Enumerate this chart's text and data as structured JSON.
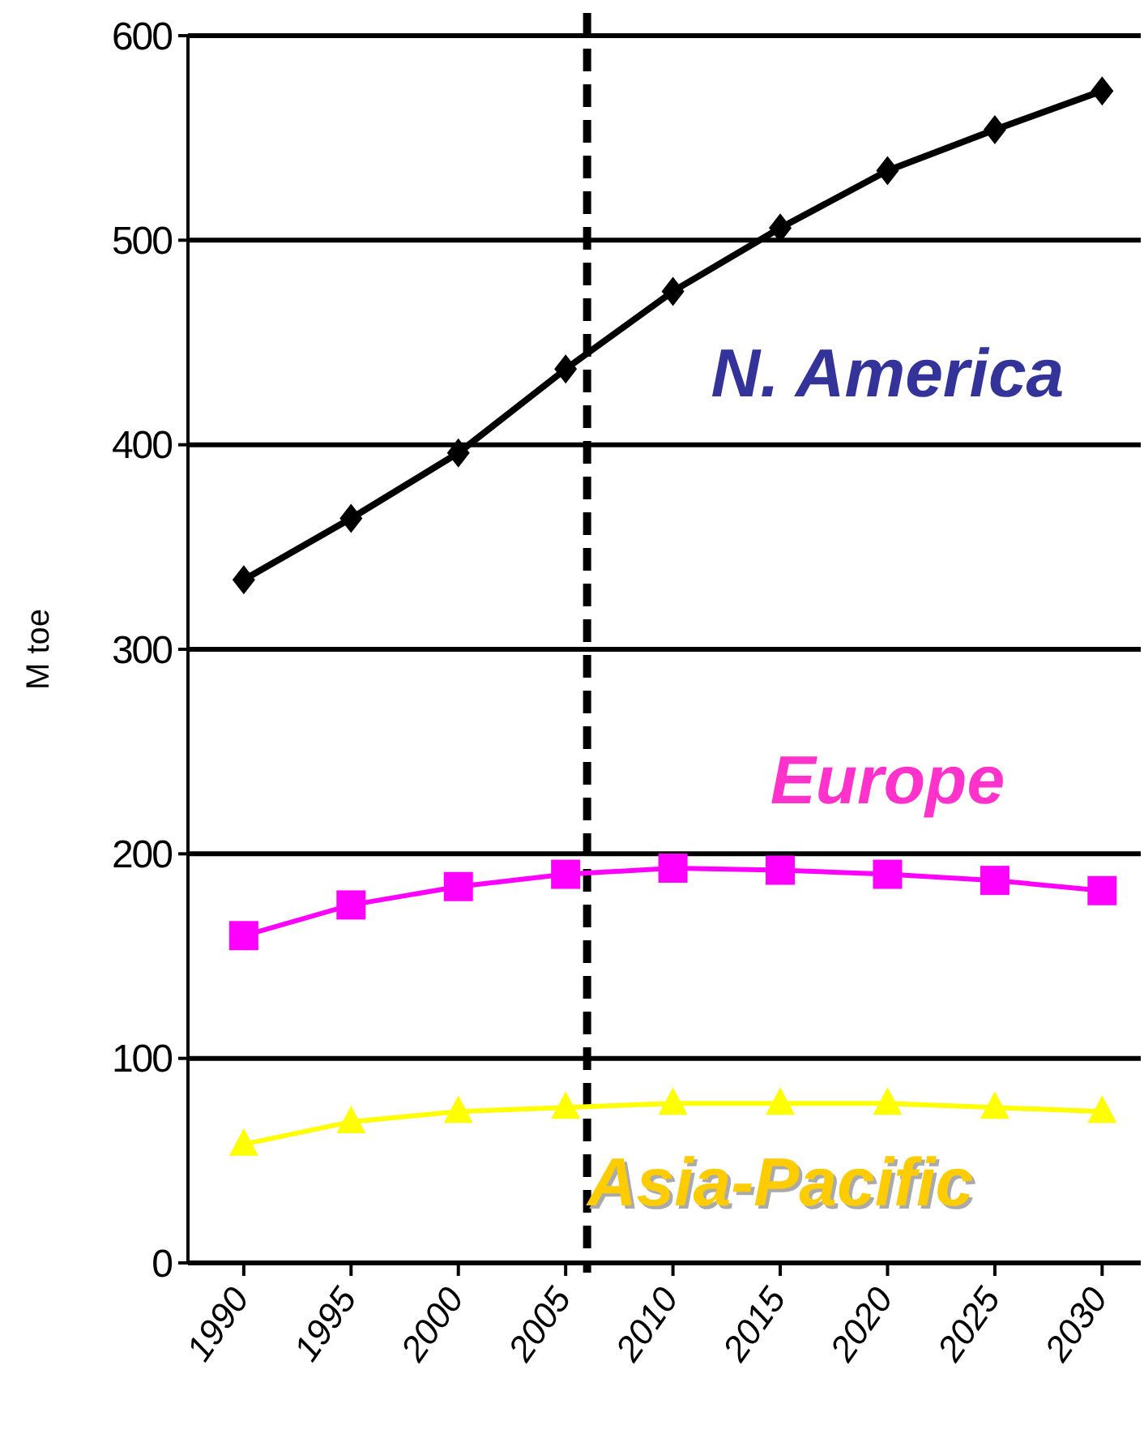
{
  "chart_data": {
    "type": "line",
    "ylabel": "M toe",
    "x": [
      1990,
      1995,
      2000,
      2005,
      2010,
      2015,
      2020,
      2025,
      2030
    ],
    "xlim": [
      1987.4,
      2031.8
    ],
    "xticks": [
      1990,
      1995,
      2000,
      2005,
      2010,
      2015,
      2020,
      2025,
      2030
    ],
    "ylim": [
      0,
      600
    ],
    "yticks": [
      0,
      100,
      200,
      300,
      400,
      500,
      600
    ],
    "grid": "y",
    "series": [
      {
        "name": "N. America",
        "color": "#000000",
        "marker": "diamond",
        "values": [
          334,
          364,
          396,
          437,
          475,
          506,
          534,
          554,
          573
        ]
      },
      {
        "name": "Europe",
        "color": "#ff00ff",
        "marker": "square",
        "values": [
          160,
          175,
          184,
          190,
          193,
          192,
          190,
          187,
          182
        ]
      },
      {
        "name": "Asia-Pacific",
        "color": "#ffff00",
        "marker": "triangle",
        "values": [
          58,
          69,
          74,
          76,
          78,
          78,
          78,
          76,
          74
        ]
      }
    ],
    "ref_lines": [
      {
        "axis": "x",
        "value": 2006,
        "color": "#000000",
        "line_style": "dashed"
      }
    ]
  }
}
